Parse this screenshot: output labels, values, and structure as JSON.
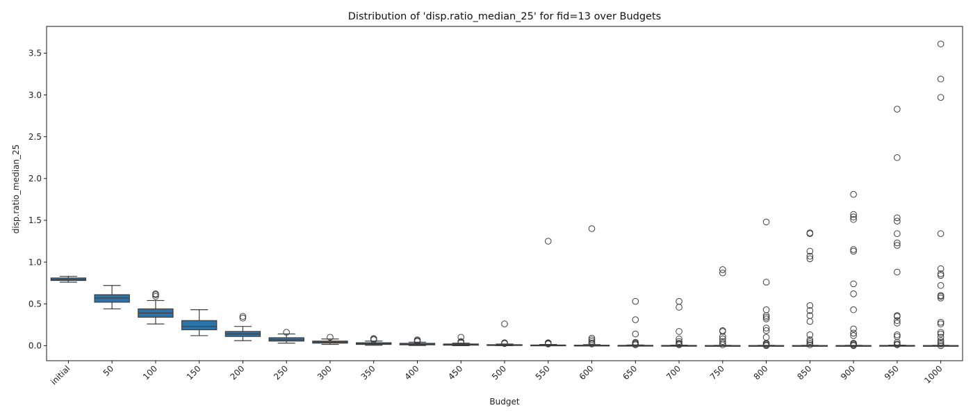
{
  "chart_data": {
    "type": "box",
    "title": "Distribution of 'disp.ratio_median_25' for fid=13 over Budgets",
    "xlabel": "Budget",
    "ylabel": "disp.ratio_median_25",
    "categories": [
      "initial",
      "50",
      "100",
      "150",
      "200",
      "250",
      "300",
      "350",
      "400",
      "450",
      "500",
      "550",
      "600",
      "650",
      "700",
      "750",
      "800",
      "850",
      "900",
      "950",
      "1000"
    ],
    "ylim": [
      -0.18,
      3.82
    ],
    "yticks": [
      0.0,
      0.5,
      1.0,
      1.5,
      2.0,
      2.5,
      3.0,
      3.5
    ],
    "ytick_labels": [
      "0.0",
      "0.5",
      "1.0",
      "1.5",
      "2.0",
      "2.5",
      "3.0",
      "3.5"
    ],
    "box_color": "#2e73a8",
    "line_color": "#3d3d3d",
    "boxes": [
      {
        "q1": 0.78,
        "median": 0.79,
        "q3": 0.81,
        "whislo": 0.76,
        "whishi": 0.83,
        "fliers": []
      },
      {
        "q1": 0.52,
        "median": 0.57,
        "q3": 0.61,
        "whislo": 0.44,
        "whishi": 0.72,
        "fliers": []
      },
      {
        "q1": 0.34,
        "median": 0.39,
        "q3": 0.44,
        "whislo": 0.26,
        "whishi": 0.54,
        "fliers": [
          0.59,
          0.61,
          0.62
        ]
      },
      {
        "q1": 0.19,
        "median": 0.23,
        "q3": 0.3,
        "whislo": 0.12,
        "whishi": 0.43,
        "fliers": []
      },
      {
        "q1": 0.11,
        "median": 0.14,
        "q3": 0.17,
        "whislo": 0.06,
        "whishi": 0.23,
        "fliers": [
          0.33,
          0.35
        ]
      },
      {
        "q1": 0.055,
        "median": 0.07,
        "q3": 0.095,
        "whislo": 0.03,
        "whishi": 0.14,
        "fliers": [
          0.16
        ]
      },
      {
        "q1": 0.03,
        "median": 0.042,
        "q3": 0.055,
        "whislo": 0.015,
        "whishi": 0.08,
        "fliers": [
          0.1
        ]
      },
      {
        "q1": 0.015,
        "median": 0.025,
        "q3": 0.035,
        "whislo": 0.005,
        "whishi": 0.055,
        "fliers": [
          0.07,
          0.08,
          0.085
        ]
      },
      {
        "q1": 0.01,
        "median": 0.018,
        "q3": 0.028,
        "whislo": 0.002,
        "whishi": 0.042,
        "fliers": [
          0.05,
          0.06,
          0.07
        ]
      },
      {
        "q1": 0.006,
        "median": 0.012,
        "q3": 0.02,
        "whislo": 0.0,
        "whishi": 0.03,
        "fliers": [
          0.035,
          0.04,
          0.05,
          0.1
        ]
      },
      {
        "q1": 0.002,
        "median": 0.006,
        "q3": 0.012,
        "whislo": 0.0,
        "whishi": 0.02,
        "fliers": [
          0.025,
          0.03,
          0.035,
          0.26
        ]
      },
      {
        "q1": 0.0,
        "median": 0.003,
        "q3": 0.008,
        "whislo": 0.0,
        "whishi": 0.015,
        "fliers": [
          0.02,
          0.025,
          0.03,
          0.035,
          1.25
        ]
      },
      {
        "q1": 0.0,
        "median": 0.002,
        "q3": 0.006,
        "whislo": 0.0,
        "whishi": 0.012,
        "fliers": [
          0.02,
          0.03,
          0.05,
          0.07,
          0.09,
          1.4
        ]
      },
      {
        "q1": 0.0,
        "median": 0.001,
        "q3": 0.004,
        "whislo": 0.0,
        "whishi": 0.008,
        "fliers": [
          0.01,
          0.02,
          0.03,
          0.04,
          0.14,
          0.31,
          0.53
        ]
      },
      {
        "q1": 0.0,
        "median": 0.001,
        "q3": 0.003,
        "whislo": 0.0,
        "whishi": 0.006,
        "fliers": [
          0.01,
          0.02,
          0.03,
          0.05,
          0.08,
          0.17,
          0.46,
          0.53
        ]
      },
      {
        "q1": 0.0,
        "median": 0.0,
        "q3": 0.002,
        "whislo": 0.0,
        "whishi": 0.004,
        "fliers": [
          0.01,
          0.03,
          0.05,
          0.08,
          0.11,
          0.17,
          0.18,
          0.87,
          0.91
        ]
      },
      {
        "q1": 0.0,
        "median": 0.0,
        "q3": 0.002,
        "whislo": 0.0,
        "whishi": 0.004,
        "fliers": [
          0.0,
          0.01,
          0.02,
          0.03,
          0.1,
          0.18,
          0.21,
          0.32,
          0.34,
          0.36,
          0.43,
          0.76,
          1.48
        ]
      },
      {
        "q1": 0.0,
        "median": 0.0,
        "q3": 0.002,
        "whislo": 0.0,
        "whishi": 0.004,
        "fliers": [
          0.01,
          0.03,
          0.05,
          0.07,
          0.13,
          0.29,
          0.36,
          0.42,
          0.48,
          1.04,
          1.07,
          1.13,
          1.34,
          1.35
        ]
      },
      {
        "q1": 0.0,
        "median": 0.0,
        "q3": 0.002,
        "whislo": 0.0,
        "whishi": 0.004,
        "fliers": [
          0.0,
          0.01,
          0.02,
          0.03,
          0.12,
          0.15,
          0.2,
          0.43,
          0.62,
          0.74,
          1.13,
          1.15,
          1.51,
          1.54,
          1.57,
          1.81
        ]
      },
      {
        "q1": 0.0,
        "median": 0.0,
        "q3": 0.003,
        "whislo": 0.0,
        "whishi": 0.006,
        "fliers": [
          0.01,
          0.02,
          0.04,
          0.11,
          0.13,
          0.27,
          0.3,
          0.35,
          0.36,
          0.88,
          1.2,
          1.23,
          1.34,
          1.49,
          1.53,
          2.25,
          2.83
        ]
      },
      {
        "q1": 0.0,
        "median": 0.0,
        "q3": 0.002,
        "whislo": 0.0,
        "whishi": 0.004,
        "fliers": [
          0.0,
          0.02,
          0.04,
          0.06,
          0.1,
          0.14,
          0.16,
          0.26,
          0.28,
          0.57,
          0.59,
          0.6,
          0.72,
          0.84,
          0.86,
          0.92,
          1.34,
          2.97,
          3.19,
          3.61
        ]
      }
    ]
  }
}
